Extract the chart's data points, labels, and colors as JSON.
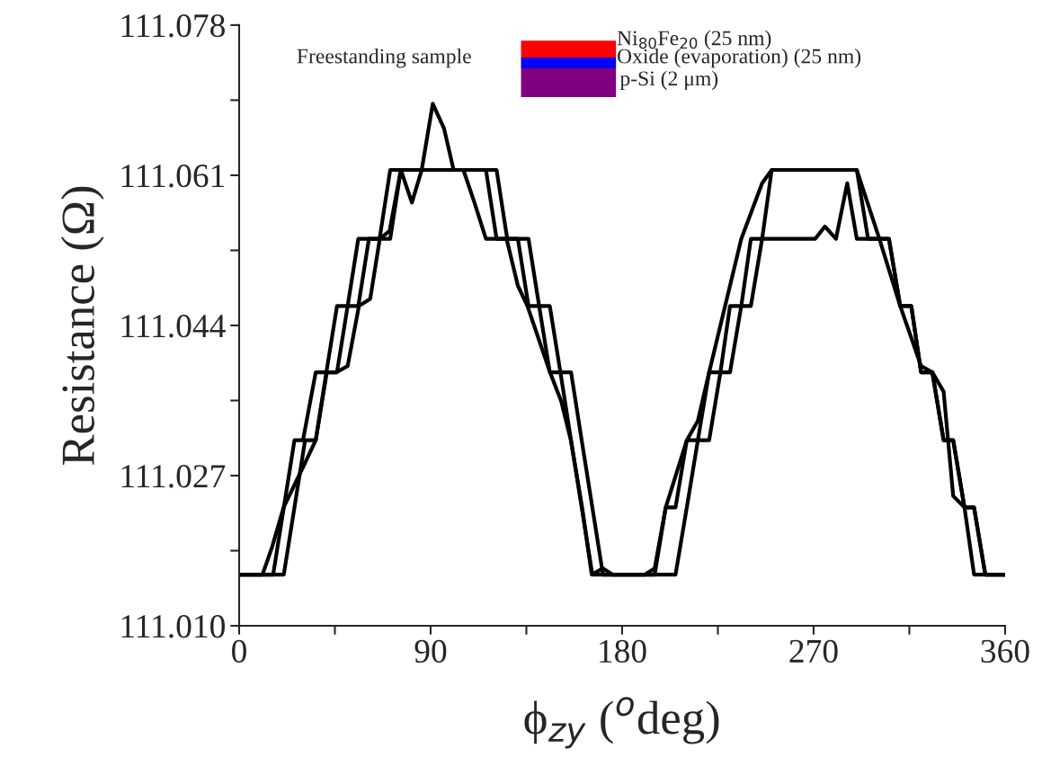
{
  "chart_data": {
    "type": "line",
    "xlabel": "ϕ$_{zy}$ ($^{o}$deg)",
    "ylabel": "Resistance (Ω)",
    "annotations": [
      "Freestanding sample",
      "Ni$_{80}$Fe$_{20}$ (25 nm)",
      "Oxide (evaporation) (25 nm)",
      "p-Si (2 μm)"
    ],
    "xlim": [
      0,
      360
    ],
    "xticks": [
      0,
      {
        "value": 45,
        "label": null
      },
      90,
      {
        "value": 135,
        "label": null
      },
      180,
      {
        "value": 225,
        "label": null
      },
      270,
      {
        "value": 315,
        "label": null
      },
      360
    ],
    "ylim": [
      111.01,
      111.078
    ],
    "yticks": [
      {
        "value": 111.01,
        "label": "111.010"
      },
      {
        "value": 111.0185,
        "label": null
      },
      111.027,
      {
        "value": 111.0355,
        "label": null
      },
      111.044,
      {
        "value": 111.0525,
        "label": null
      },
      111.061,
      {
        "value": 111.0695,
        "label": null
      },
      111.078
    ],
    "grid": false,
    "legend": false,
    "marker": "none",
    "line_style": "solid",
    "series": [
      {
        "color": "#000000",
        "x": [
          0,
          16,
          21,
          26,
          30,
          36,
          41,
          46,
          51,
          56,
          66,
          71,
          116,
          121,
          131,
          136,
          141,
          146,
          151,
          156,
          161,
          166,
          195.3,
          200.5,
          205.1,
          210.4,
          215.6,
          220.9,
          226.2,
          230.7,
          236,
          240.5,
          245.8,
          250.3,
          290.3,
          295.6,
          305.4,
          310.7,
          315.9,
          320.5,
          325.8,
          331.1,
          335.6,
          340.9,
          345.4,
          350.7,
          360
        ],
        "values": [
          111.0158,
          111.0158,
          111.0234,
          111.031,
          111.031,
          111.0387,
          111.0387,
          111.0462,
          111.0462,
          111.0538,
          111.0538,
          111.0616,
          111.0616,
          111.0538,
          111.0538,
          111.0462,
          111.0462,
          111.0387,
          111.0387,
          111.031,
          111.0234,
          111.0158,
          111.0158,
          111.0234,
          111.0234,
          111.031,
          111.031,
          111.0387,
          111.0387,
          111.0462,
          111.0462,
          111.0538,
          111.0538,
          111.0616,
          111.0616,
          111.0538,
          111.0538,
          111.0462,
          111.0462,
          111.0387,
          111.0387,
          111.031,
          111.031,
          111.0234,
          111.0234,
          111.0158,
          111.0158
        ]
      },
      {
        "color": "#000000",
        "x": [
          0,
          21,
          26,
          31,
          36,
          41,
          46,
          51,
          56,
          61,
          71,
          76,
          121,
          126,
          136,
          141,
          146,
          151,
          156,
          161,
          166,
          171,
          205.1,
          210.4,
          215.6,
          220.9,
          226.2,
          230.7,
          236,
          240.5,
          245.8,
          270.7,
          275.3,
          280.5,
          285.8,
          290.3,
          305.4,
          310.7,
          315.9,
          320.5,
          325.8,
          331.1,
          335.6,
          340.9,
          345.4,
          350.7,
          360
        ],
        "values": [
          111.0158,
          111.0158,
          111.0234,
          111.031,
          111.031,
          111.0387,
          111.0387,
          111.0462,
          111.0462,
          111.0538,
          111.0538,
          111.0616,
          111.0616,
          111.0538,
          111.0538,
          111.0462,
          111.0462,
          111.0387,
          111.0387,
          111.031,
          111.0234,
          111.0158,
          111.0158,
          111.0234,
          111.031,
          111.031,
          111.0387,
          111.0387,
          111.0462,
          111.0462,
          111.0538,
          111.0538,
          111.0552,
          111.0538,
          111.0601,
          111.0538,
          111.0538,
          111.0462,
          111.0462,
          111.0387,
          111.0387,
          111.031,
          111.031,
          111.0234,
          111.0234,
          111.0158,
          111.0158
        ]
      },
      {
        "color": "#000000",
        "x": [
          0,
          11,
          15.6,
          20.9,
          30.7,
          36,
          41.2,
          45.8,
          51,
          56.3,
          61.6,
          66.1,
          70.7,
          76,
          81.2,
          85.8,
          91,
          96.3,
          100.8,
          105.4,
          110.6,
          116,
          125.7,
          131,
          135.5,
          146.1,
          151.4,
          155.9,
          161.2,
          165.7,
          171,
          175.5,
          190.7,
          195.3,
          200.5,
          210.4,
          215.6,
          220.9,
          236,
          245.8,
          250.3,
          290.3,
          300.9,
          310.7,
          320.5,
          325.8,
          331.1,
          335.6,
          340.9,
          345.4,
          360
        ],
        "values": [
          111.0158,
          111.0158,
          111.019,
          111.0234,
          111.0283,
          111.031,
          111.0387,
          111.0387,
          111.0394,
          111.0462,
          111.047,
          111.0538,
          111.0547,
          111.0616,
          111.0579,
          111.0616,
          111.0691,
          111.0663,
          111.0616,
          111.0616,
          111.0579,
          111.0538,
          111.0538,
          111.0485,
          111.0462,
          111.0387,
          111.0354,
          111.031,
          111.0234,
          111.0158,
          111.0165,
          111.0158,
          111.0158,
          111.0165,
          111.0234,
          111.031,
          111.0332,
          111.0387,
          111.0538,
          111.0601,
          111.0616,
          111.0616,
          111.0538,
          111.0462,
          111.0394,
          111.0387,
          111.0365,
          111.0247,
          111.0234,
          111.0158,
          111.0158
        ]
      }
    ]
  }
}
